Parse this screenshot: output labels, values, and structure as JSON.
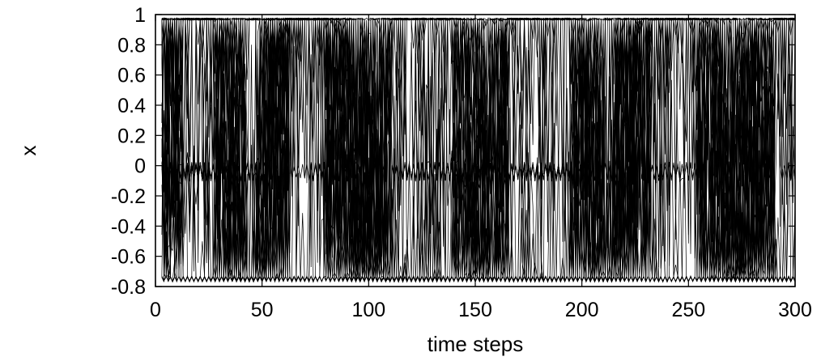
{
  "chart_data": {
    "type": "line",
    "title": "",
    "xlabel": "time steps",
    "ylabel": "x",
    "xlim": [
      0,
      300
    ],
    "ylim": [
      -0.8,
      1
    ],
    "xticks": [
      0,
      50,
      100,
      150,
      200,
      250,
      300
    ],
    "xtick_labels": [
      "0",
      "50",
      "100",
      "150",
      "200",
      "250",
      "300"
    ],
    "yticks": [
      1,
      0.8,
      0.6,
      0.4,
      0.2,
      0,
      -0.2,
      -0.4,
      -0.6,
      -0.8
    ],
    "ytick_labels": [
      "1",
      "0.8",
      "0.6",
      "0.4",
      "0.2",
      "0",
      "-0.2",
      "-0.4",
      "-0.6",
      "-0.8"
    ],
    "grid": false,
    "legend": "none",
    "line_color": "#000000",
    "levels": {
      "upper": 0.97,
      "middle": -0.04,
      "lower": -0.755
    },
    "series_count": 40,
    "x_range": [
      3,
      300
    ],
    "switch_bands": [
      {
        "x": [
          3,
          12
        ],
        "kind": "up"
      },
      {
        "x": [
          28,
          42
        ],
        "kind": "down"
      },
      {
        "x": [
          48,
          62
        ],
        "kind": "up"
      },
      {
        "x": [
          80,
          98
        ],
        "kind": "down"
      },
      {
        "x": [
          95,
          110
        ],
        "kind": "up"
      },
      {
        "x": [
          140,
          155
        ],
        "kind": "down"
      },
      {
        "x": [
          150,
          165
        ],
        "kind": "up"
      },
      {
        "x": [
          195,
          210
        ],
        "kind": "down"
      },
      {
        "x": [
          215,
          232
        ],
        "kind": "up"
      },
      {
        "x": [
          255,
          275
        ],
        "kind": "down"
      },
      {
        "x": [
          270,
          290
        ],
        "kind": "up"
      }
    ]
  }
}
